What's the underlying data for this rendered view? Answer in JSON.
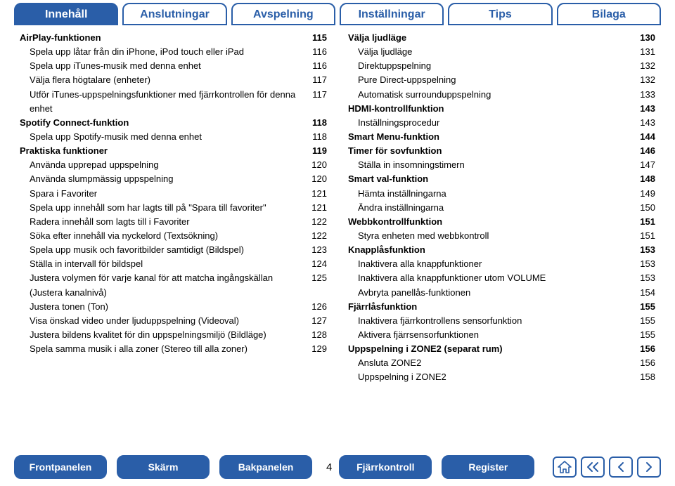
{
  "colors": {
    "accent": "#2a5ea8",
    "background": "#ffffff",
    "text": "#000000"
  },
  "topTabs": [
    {
      "label": "Innehåll",
      "active": true
    },
    {
      "label": "Anslutningar",
      "active": false
    },
    {
      "label": "Avspelning",
      "active": false
    },
    {
      "label": "Inställningar",
      "active": false
    },
    {
      "label": "Tips",
      "active": false
    },
    {
      "label": "Bilaga",
      "active": false
    }
  ],
  "leftCol": [
    {
      "label": "AirPlay-funktionen",
      "page": "115",
      "level": 0
    },
    {
      "label": "Spela upp låtar från din iPhone, iPod touch eller iPad",
      "page": "116",
      "level": 1
    },
    {
      "label": "Spela upp iTunes-musik med denna enhet",
      "page": "116",
      "level": 1
    },
    {
      "label": "Välja flera högtalare (enheter)",
      "page": "117",
      "level": 1
    },
    {
      "label": "Utför iTunes-uppspelningsfunktioner med fjärrkontrollen för denna enhet",
      "page": "117",
      "level": 1
    },
    {
      "label": "Spotify Connect-funktion",
      "page": "118",
      "level": 0
    },
    {
      "label": "Spela upp Spotify-musik med denna enhet",
      "page": "118",
      "level": 1
    },
    {
      "label": "Praktiska funktioner",
      "page": "119",
      "level": 0
    },
    {
      "label": "Använda upprepad uppspelning",
      "page": "120",
      "level": 1
    },
    {
      "label": "Använda slumpmässig uppspelning",
      "page": "120",
      "level": 1
    },
    {
      "label": "Spara i Favoriter",
      "page": "121",
      "level": 1
    },
    {
      "label": "Spela upp innehåll som har lagts till på \"Spara till favoriter\"",
      "page": "121",
      "level": 1
    },
    {
      "label": "Radera innehåll som lagts till i Favoriter",
      "page": "122",
      "level": 1
    },
    {
      "label": "Söka efter innehåll via nyckelord (Textsökning)",
      "page": "122",
      "level": 1
    },
    {
      "label": "Spela upp musik och favoritbilder samtidigt (Bildspel)",
      "page": "123",
      "level": 1
    },
    {
      "label": "Ställa in intervall för bildspel",
      "page": "124",
      "level": 1
    },
    {
      "label": "Justera volymen för varje kanal för att matcha ingångskällan (Justera kanalnivå)",
      "page": "125",
      "level": 1
    },
    {
      "label": "Justera tonen (Ton)",
      "page": "126",
      "level": 1
    },
    {
      "label": "Visa önskad video under ljuduppspelning (Videoval)",
      "page": "127",
      "level": 1
    },
    {
      "label": "Justera bildens kvalitet för din uppspelningsmiljö (Bildläge)",
      "page": "128",
      "level": 1
    },
    {
      "label": "Spela samma musik i alla zoner (Stereo till alla zoner)",
      "page": "129",
      "level": 1
    }
  ],
  "rightCol": [
    {
      "label": "Välja ljudläge",
      "page": "130",
      "level": 0
    },
    {
      "label": "Välja ljudläge",
      "page": "131",
      "level": 1
    },
    {
      "label": "Direktuppspelning",
      "page": "132",
      "level": 1
    },
    {
      "label": "Pure Direct-uppspelning",
      "page": "132",
      "level": 1
    },
    {
      "label": "Automatisk surrounduppspelning",
      "page": "133",
      "level": 1
    },
    {
      "label": "HDMI-kontrollfunktion",
      "page": "143",
      "level": 0
    },
    {
      "label": "Inställningsprocedur",
      "page": "143",
      "level": 1
    },
    {
      "label": "Smart Menu-funktion",
      "page": "144",
      "level": 0
    },
    {
      "label": "Timer för sovfunktion",
      "page": "146",
      "level": 0
    },
    {
      "label": "Ställa in insomningstimern",
      "page": "147",
      "level": 1
    },
    {
      "label": "Smart val-funktion",
      "page": "148",
      "level": 0
    },
    {
      "label": "Hämta inställningarna",
      "page": "149",
      "level": 1
    },
    {
      "label": "Ändra inställningarna",
      "page": "150",
      "level": 1
    },
    {
      "label": "Webbkontrollfunktion",
      "page": "151",
      "level": 0
    },
    {
      "label": "Styra enheten med webbkontroll",
      "page": "151",
      "level": 1
    },
    {
      "label": "Knapplåsfunktion",
      "page": "153",
      "level": 0
    },
    {
      "label": "Inaktivera alla knappfunktioner",
      "page": "153",
      "level": 1
    },
    {
      "label": "Inaktivera alla knappfunktioner utom VOLUME",
      "page": "153",
      "level": 1
    },
    {
      "label": "Avbryta panellås-funktionen",
      "page": "154",
      "level": 1
    },
    {
      "label": "Fjärrlåsfunktion",
      "page": "155",
      "level": 0
    },
    {
      "label": "Inaktivera fjärrkontrollens sensorfunktion",
      "page": "155",
      "level": 1
    },
    {
      "label": "Aktivera fjärrsensorfunktionen",
      "page": "155",
      "level": 1
    },
    {
      "label": "Uppspelning i ZONE2 (separat rum)",
      "page": "156",
      "level": 0
    },
    {
      "label": "Ansluta ZONE2",
      "page": "156",
      "level": 1
    },
    {
      "label": "Uppspelning i ZONE2",
      "page": "158",
      "level": 1
    }
  ],
  "bottomButtons": [
    {
      "label": "Frontpanelen"
    },
    {
      "label": "Skärm"
    },
    {
      "label": "Bakpanelen"
    },
    {
      "label": "Fjärrkontroll"
    },
    {
      "label": "Register"
    }
  ],
  "pageNumber": "4"
}
